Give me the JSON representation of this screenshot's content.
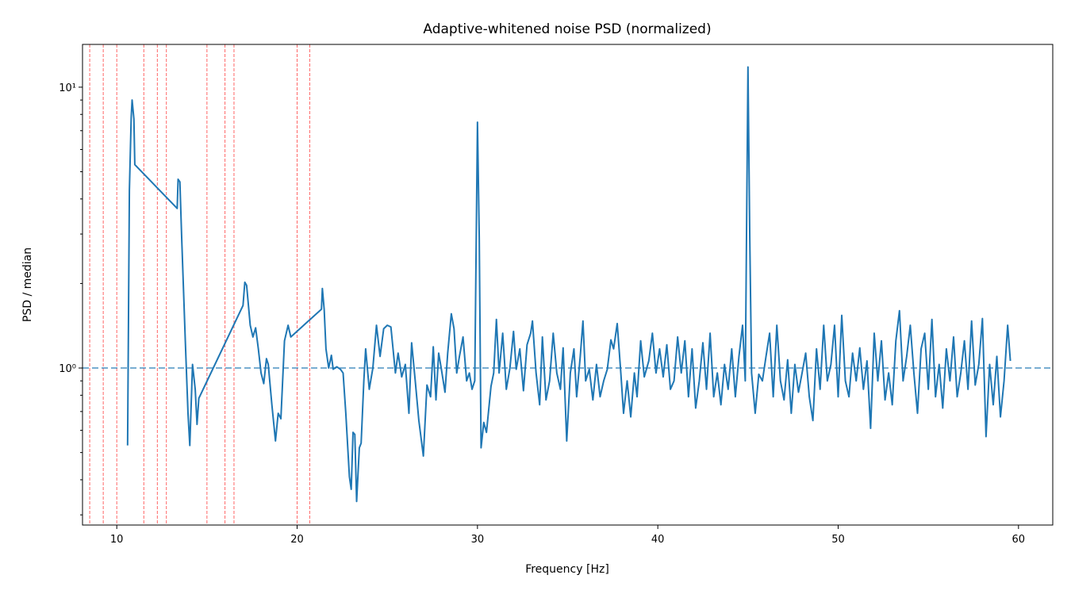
{
  "chart_data": {
    "type": "line",
    "title": "Adaptive-whitened noise PSD (normalized)",
    "xlabel": "Frequency [Hz]",
    "ylabel": "PSD / median",
    "yscale": "log",
    "color": "#1f77b4",
    "xlim": [
      8.1,
      61.9
    ],
    "ylim": [
      0.276,
      14.2
    ],
    "xticks": [
      10,
      20,
      30,
      40,
      50,
      60
    ],
    "yticks": [
      {
        "value": 1,
        "label": "10⁰"
      },
      {
        "value": 10,
        "label": "10¹"
      }
    ],
    "yminorticks": [
      0.3,
      0.4,
      0.5,
      0.6,
      0.7,
      0.8,
      0.9,
      2,
      3,
      4,
      5,
      6,
      7,
      8,
      9
    ],
    "vlines": [
      8.5,
      9.25,
      10,
      11.5,
      12.25,
      12.75,
      15,
      16,
      16.5,
      20,
      20.7
    ],
    "vline_color": "#ff0000",
    "hline": 1,
    "hline_color": "#1f77b4",
    "x": [
      10.6,
      10.7,
      10.8,
      10.85,
      10.95,
      11.0,
      13.35,
      13.4,
      13.5,
      13.6,
      13.8,
      13.95,
      14.05,
      14.2,
      14.35,
      14.45,
      14.55,
      17.0,
      17.1,
      17.2,
      17.4,
      17.55,
      17.7,
      17.85,
      18.0,
      18.15,
      18.3,
      18.4,
      18.6,
      18.8,
      18.95,
      19.1,
      19.3,
      19.5,
      19.65,
      21.35,
      21.4,
      21.5,
      21.6,
      21.75,
      21.9,
      22.0,
      22.2,
      22.4,
      22.55,
      22.7,
      22.9,
      23.0,
      23.1,
      23.2,
      23.3,
      23.45,
      23.55,
      23.7,
      23.8,
      24.0,
      24.2,
      24.4,
      24.6,
      24.8,
      25.0,
      25.2,
      25.45,
      25.6,
      25.8,
      26.0,
      26.2,
      26.35,
      26.55,
      26.75,
      27.0,
      27.2,
      27.4,
      27.55,
      27.7,
      27.85,
      28.0,
      28.2,
      28.35,
      28.55,
      28.7,
      28.85,
      29.0,
      29.2,
      29.4,
      29.55,
      29.7,
      29.85,
      30.0,
      30.1,
      30.2,
      30.35,
      30.5,
      30.75,
      30.9,
      31.05,
      31.2,
      31.4,
      31.6,
      31.8,
      32.0,
      32.15,
      32.35,
      32.55,
      32.75,
      32.95,
      33.05,
      33.25,
      33.45,
      33.6,
      33.8,
      34.0,
      34.2,
      34.4,
      34.6,
      34.75,
      34.95,
      35.15,
      35.35,
      35.5,
      35.7,
      35.85,
      36.0,
      36.2,
      36.4,
      36.6,
      36.8,
      37.0,
      37.2,
      37.4,
      37.55,
      37.75,
      37.95,
      38.1,
      38.3,
      38.5,
      38.7,
      38.85,
      39.05,
      39.25,
      39.5,
      39.7,
      39.9,
      40.1,
      40.3,
      40.5,
      40.7,
      40.9,
      41.1,
      41.3,
      41.5,
      41.7,
      41.9,
      42.1,
      42.3,
      42.5,
      42.7,
      42.9,
      43.1,
      43.3,
      43.5,
      43.7,
      43.9,
      44.1,
      44.3,
      44.5,
      44.7,
      44.85,
      45.0,
      45.1,
      45.2,
      45.4,
      45.6,
      45.8,
      46.0,
      46.2,
      46.4,
      46.6,
      46.8,
      47.0,
      47.2,
      47.4,
      47.6,
      47.8,
      48.0,
      48.2,
      48.4,
      48.6,
      48.8,
      49.0,
      49.2,
      49.4,
      49.6,
      49.8,
      50.0,
      50.2,
      50.4,
      50.6,
      50.8,
      51.0,
      51.2,
      51.4,
      51.6,
      51.8,
      52.0,
      52.2,
      52.4,
      52.6,
      52.8,
      53.0,
      53.2,
      53.4,
      53.6,
      53.8,
      54.0,
      54.2,
      54.4,
      54.6,
      54.8,
      55.0,
      55.2,
      55.4,
      55.6,
      55.8,
      56.0,
      56.2,
      56.4,
      56.6,
      56.8,
      57.0,
      57.2,
      57.4,
      57.6,
      57.8,
      58.0,
      58.2,
      58.4,
      58.6,
      58.8,
      59.0,
      59.2,
      59.4,
      59.55
    ],
    "values": [
      0.53,
      4.3,
      7.8,
      9.0,
      7.7,
      5.3,
      3.7,
      4.7,
      4.6,
      2.9,
      1.25,
      0.69,
      0.53,
      1.03,
      0.84,
      0.63,
      0.78,
      1.67,
      2.02,
      1.97,
      1.42,
      1.29,
      1.39,
      1.17,
      0.96,
      0.88,
      1.08,
      1.03,
      0.74,
      0.55,
      0.69,
      0.66,
      1.25,
      1.42,
      1.29,
      1.62,
      1.92,
      1.62,
      1.17,
      1.0,
      1.11,
      0.99,
      1.01,
      0.99,
      0.96,
      0.69,
      0.41,
      0.37,
      0.59,
      0.58,
      0.335,
      0.52,
      0.54,
      0.9,
      1.17,
      0.84,
      1.0,
      1.42,
      1.1,
      1.38,
      1.42,
      1.4,
      0.96,
      1.13,
      0.93,
      1.03,
      0.69,
      1.23,
      0.9,
      0.65,
      0.486,
      0.87,
      0.79,
      1.19,
      0.77,
      1.13,
      0.99,
      0.82,
      1.13,
      1.56,
      1.38,
      0.96,
      1.1,
      1.29,
      0.9,
      0.96,
      0.84,
      0.9,
      7.5,
      2.9,
      0.52,
      0.64,
      0.59,
      0.86,
      0.96,
      1.49,
      0.96,
      1.33,
      0.84,
      1.0,
      1.35,
      0.99,
      1.17,
      0.83,
      1.21,
      1.33,
      1.47,
      0.96,
      0.74,
      1.29,
      0.77,
      0.9,
      1.33,
      0.96,
      0.84,
      1.18,
      0.55,
      0.96,
      1.17,
      0.79,
      1.1,
      1.47,
      0.9,
      0.99,
      0.77,
      1.03,
      0.79,
      0.9,
      0.99,
      1.26,
      1.17,
      1.44,
      0.96,
      0.69,
      0.9,
      0.67,
      0.96,
      0.79,
      1.25,
      0.93,
      1.06,
      1.33,
      0.96,
      1.17,
      0.93,
      1.21,
      0.84,
      0.9,
      1.29,
      0.96,
      1.25,
      0.79,
      1.17,
      0.72,
      0.9,
      1.23,
      0.84,
      1.33,
      0.79,
      0.96,
      0.74,
      1.03,
      0.84,
      1.17,
      0.79,
      1.1,
      1.42,
      0.9,
      11.8,
      2.9,
      0.96,
      0.69,
      0.95,
      0.9,
      1.1,
      1.33,
      0.79,
      1.42,
      0.9,
      0.77,
      1.07,
      0.69,
      1.03,
      0.82,
      0.96,
      1.13,
      0.79,
      0.65,
      1.17,
      0.84,
      1.42,
      0.9,
      1.03,
      1.42,
      0.79,
      1.54,
      0.9,
      0.79,
      1.13,
      0.9,
      1.18,
      0.84,
      1.06,
      0.61,
      1.33,
      0.9,
      1.25,
      0.77,
      0.96,
      0.74,
      1.25,
      1.6,
      0.9,
      1.1,
      1.42,
      0.96,
      0.69,
      1.17,
      1.33,
      0.84,
      1.49,
      0.79,
      1.03,
      0.72,
      1.17,
      0.9,
      1.29,
      0.79,
      0.96,
      1.25,
      0.84,
      1.47,
      0.87,
      1.03,
      1.5,
      0.57,
      1.03,
      0.74,
      1.1,
      0.67,
      0.9,
      1.42,
      1.06
    ]
  }
}
